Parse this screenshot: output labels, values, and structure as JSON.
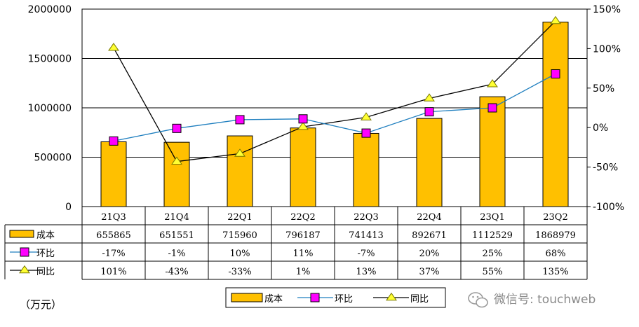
{
  "chart_data": {
    "type": "bar",
    "categories": [
      "21Q3",
      "21Q4",
      "22Q1",
      "22Q2",
      "22Q3",
      "22Q4",
      "23Q1",
      "23Q2"
    ],
    "unit_label": "（万元）",
    "y_left": {
      "ticks": [
        "2000000",
        "1500000",
        "1000000",
        "500000",
        "0"
      ],
      "lim": [
        0,
        2000000
      ]
    },
    "y_right": {
      "ticks": [
        "150%",
        "100%",
        "50%",
        "0%",
        "-50%",
        "-100%"
      ],
      "lim": [
        -100,
        150
      ]
    },
    "series": [
      {
        "name": "成本",
        "kind": "bar",
        "axis": "left",
        "color": "#FFC000",
        "values": [
          655865,
          651551,
          715960,
          796187,
          741413,
          892671,
          1112529,
          1868979
        ],
        "labels": [
          "655865",
          "651551",
          "715960",
          "796187",
          "741413",
          "892671",
          "1112529",
          "1868979"
        ]
      },
      {
        "name": "环比",
        "kind": "line",
        "axis": "right",
        "color": "#1F7FBF",
        "marker": "square",
        "marker_color": "#FF00FF",
        "values": [
          -17,
          -1,
          10,
          11,
          -7,
          20,
          25,
          68
        ],
        "labels": [
          "-17%",
          "-1%",
          "10%",
          "11%",
          "-7%",
          "20%",
          "25%",
          "68%"
        ]
      },
      {
        "name": "同比",
        "kind": "line",
        "axis": "right",
        "color": "#000000",
        "marker": "triangle",
        "marker_color": "#FFFF33",
        "values": [
          101,
          -43,
          -33,
          1,
          13,
          37,
          55,
          135
        ],
        "labels": [
          "101%",
          "-43%",
          "-33%",
          "1%",
          "13%",
          "37%",
          "55%",
          "135%"
        ]
      }
    ]
  },
  "watermark": {
    "icon": "wechat-icon",
    "text": "微信号: touchweb"
  }
}
